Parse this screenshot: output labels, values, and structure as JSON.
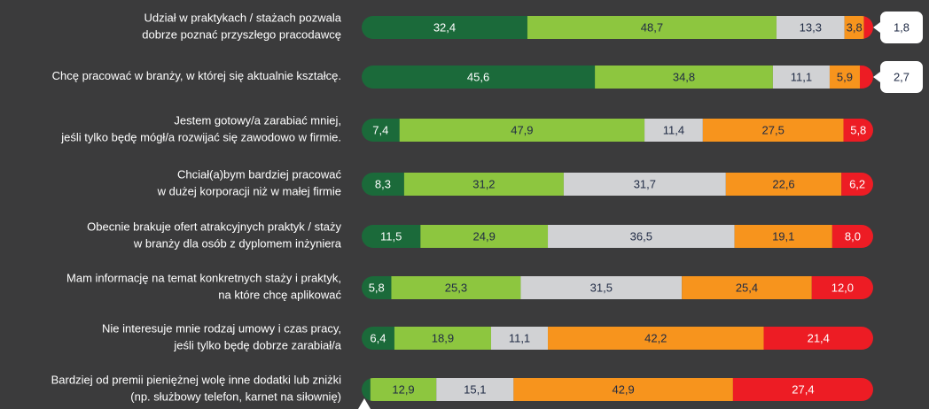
{
  "chart_data": {
    "type": "stacked-bar-horizontal",
    "categories": [
      [
        "Udział w praktykach / stażach pozwala",
        "dobrze poznać przyszłego pracodawcę"
      ],
      [
        "Chcę pracować w branży, w której  się aktualnie kształcę."
      ],
      [
        "Jestem gotowy/a zarabiać mniej,",
        "jeśli tylko będę mógł/a rozwijać się zawodowo w firmie."
      ],
      [
        "Chciał(a)bym bardziej pracować",
        "w dużej korporacji niż w małej firmie"
      ],
      [
        "Obecnie brakuje ofert atrakcyjnych praktyk / staży",
        "w branży dla osób z dyplomem inżyniera"
      ],
      [
        "Mam informację na temat konkretnych staży i praktyk,",
        "na które chcę aplikować"
      ],
      [
        "Nie interesuje mnie rodzaj umowy i czas pracy,",
        "jeśli tylko będę dobrze zarabiał/a"
      ],
      [
        "Bardziej od premii pieniężnej wolę inne dodatki lub zniżki",
        "(np. służbowy telefon, karnet na siłownię)"
      ]
    ],
    "series": [
      {
        "color": "#1b6a3a",
        "values": [
          32.4,
          45.6,
          7.4,
          8.3,
          11.5,
          5.8,
          6.4,
          1.7
        ],
        "value_labels": [
          "32,4",
          "45,6",
          "7,4",
          "8,3",
          "11,5",
          "5,8",
          "6,4",
          null
        ]
      },
      {
        "color": "#8dc63f",
        "values": [
          48.7,
          34.8,
          47.9,
          31.2,
          24.9,
          25.3,
          18.9,
          12.9
        ],
        "value_labels": [
          "48,7",
          "34,8",
          "47,9",
          "31,2",
          "24,9",
          "25,3",
          "18,9",
          "12,9"
        ]
      },
      {
        "color": "#d1d2d4",
        "values": [
          13.3,
          11.1,
          11.4,
          31.7,
          36.5,
          31.5,
          11.1,
          15.1
        ],
        "value_labels": [
          "13,3",
          "11,1",
          "11,4",
          "31,7",
          "36,5",
          "31,5",
          "11,1",
          "15,1"
        ]
      },
      {
        "color": "#f7941d",
        "values": [
          3.8,
          5.9,
          27.5,
          22.6,
          19.1,
          25.4,
          42.2,
          42.9
        ],
        "value_labels": [
          "3,8",
          "5,9",
          "27,5",
          "22,6",
          "19,1",
          "25,4",
          "42,2",
          "42,9"
        ]
      },
      {
        "color": "#ed1c24",
        "values": [
          1.8,
          2.7,
          5.8,
          6.2,
          8.0,
          12.0,
          21.4,
          27.4
        ],
        "value_labels": [
          "1,8",
          "2,7",
          "5,8",
          "6,2",
          "8,0",
          "12,0",
          "21,4",
          "27,4"
        ]
      }
    ],
    "xlim": [
      0,
      100
    ]
  }
}
